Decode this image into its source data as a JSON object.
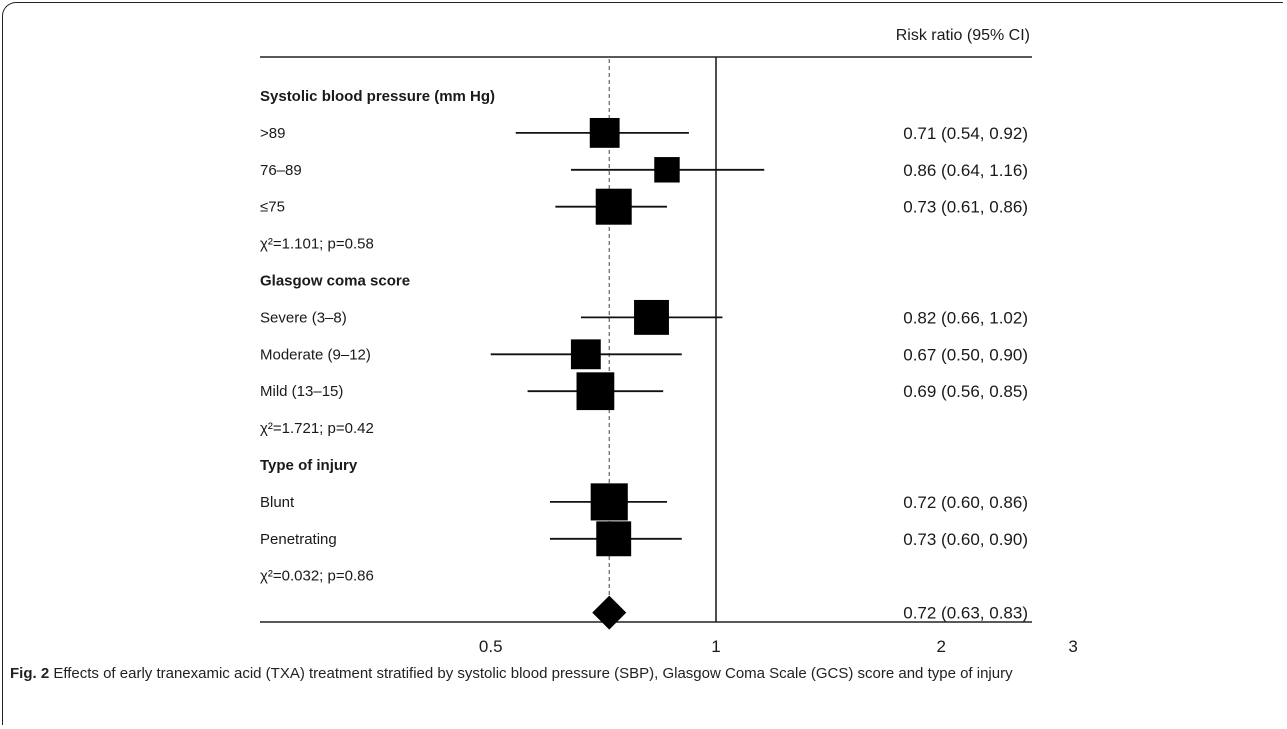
{
  "chart_data": {
    "type": "forest",
    "header": "Risk ratio (95% CI)",
    "xscale": "log",
    "xlim": [
      0.4,
      4.5
    ],
    "xticks": [
      0.5,
      1,
      2,
      3
    ],
    "xtick_labels": [
      "0.5",
      "1",
      "2",
      "3"
    ],
    "reference_line": 1,
    "overall_line": 0.72,
    "rows": [
      {
        "kind": "group",
        "label": "Systolic blood pressure (mm Hg)"
      },
      {
        "kind": "item",
        "label": ">89",
        "rr": 0.71,
        "lo": 0.54,
        "hi": 0.92,
        "text": "0.71 (0.54, 0.92)",
        "weight": 0.72
      },
      {
        "kind": "item",
        "label": "76–89",
        "rr": 0.86,
        "lo": 0.64,
        "hi": 1.16,
        "text": "0.86 (0.64, 1.16)",
        "weight": 0.52
      },
      {
        "kind": "item",
        "label": "≤75",
        "rr": 0.73,
        "lo": 0.61,
        "hi": 0.86,
        "text": "0.73 (0.61, 0.86)",
        "weight": 1.0
      },
      {
        "kind": "stat",
        "label": "χ²=1.101; p=0.58"
      },
      {
        "kind": "group",
        "label": "Glasgow coma score"
      },
      {
        "kind": "item",
        "label": "Severe (3–8)",
        "rr": 0.82,
        "lo": 0.66,
        "hi": 1.02,
        "text": "0.82 (0.66, 1.02)",
        "weight": 0.95
      },
      {
        "kind": "item",
        "label": "Moderate (9–12)",
        "rr": 0.67,
        "lo": 0.5,
        "hi": 0.9,
        "text": "0.67 (0.50, 0.90)",
        "weight": 0.72
      },
      {
        "kind": "item",
        "label": "Mild (13–15)",
        "rr": 0.69,
        "lo": 0.56,
        "hi": 0.85,
        "text": "0.69 (0.56, 0.85)",
        "weight": 1.08
      },
      {
        "kind": "stat",
        "label": "χ²=1.721; p=0.42"
      },
      {
        "kind": "group",
        "label": "Type of injury"
      },
      {
        "kind": "item",
        "label": "Blunt",
        "rr": 0.72,
        "lo": 0.6,
        "hi": 0.86,
        "text": "0.72 (0.60, 0.86)",
        "weight": 1.05
      },
      {
        "kind": "item",
        "label": "Penetrating",
        "rr": 0.73,
        "lo": 0.6,
        "hi": 0.9,
        "text": "0.73 (0.60, 0.90)",
        "weight": 0.95
      },
      {
        "kind": "stat",
        "label": "χ²=0.032; p=0.86"
      },
      {
        "kind": "overall",
        "label": "",
        "rr": 0.72,
        "lo": 0.63,
        "hi": 0.83,
        "text": "0.72 (0.63, 0.83)"
      }
    ]
  },
  "caption": {
    "prefix": "Fig. 2",
    "text": "Effects of early tranexamic acid (TXA) treatment stratified by systolic blood pressure (SBP), Glasgow Coma Scale (GCS) score and type of injury"
  }
}
